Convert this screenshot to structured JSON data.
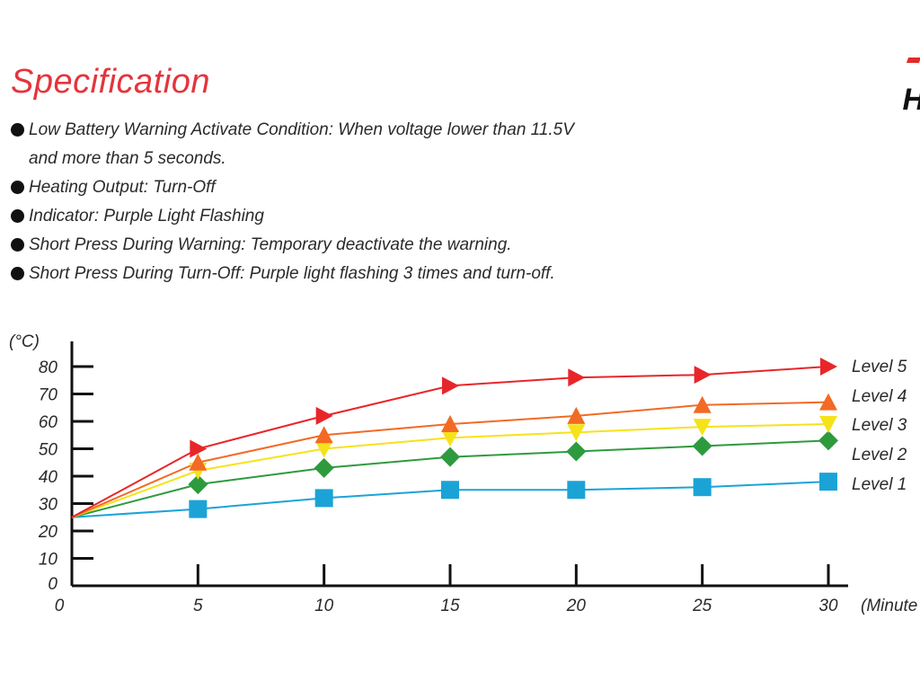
{
  "header": {
    "title": "Specification",
    "corner_text": "H"
  },
  "spec_items": [
    {
      "text": "Low Battery Warning Activate Condition: When voltage lower than 11.5V",
      "continuation": "and more than 5 seconds."
    },
    {
      "text": "Heating Output: Turn-Off",
      "continuation": ""
    },
    {
      "text": "Indicator: Purple Light Flashing",
      "continuation": ""
    },
    {
      "text": "Short Press During Warning: Temporary deactivate the warning.",
      "continuation": ""
    },
    {
      "text": "Short Press During Turn-Off: Purple light flashing 3 times and turn-off.",
      "continuation": ""
    }
  ],
  "chart_data": {
    "type": "line",
    "title": "",
    "ylabel": "(°C)",
    "xlabel": "(Minute",
    "x": [
      0,
      5,
      10,
      15,
      20,
      25,
      30
    ],
    "xticks": [
      "0",
      "5",
      "10",
      "15",
      "20",
      "25",
      "30"
    ],
    "yticks": [
      "0",
      "10",
      "20",
      "30",
      "40",
      "50",
      "60",
      "70",
      "80"
    ],
    "ylim": [
      0,
      80
    ],
    "xlim": [
      0,
      30
    ],
    "grid": false,
    "legend_placement": "right",
    "series": [
      {
        "name": "Level 5",
        "color": "#e8262a",
        "marker": "triangle-right",
        "values": [
          25,
          50,
          62,
          73,
          76,
          77,
          80
        ]
      },
      {
        "name": "Level 4",
        "color": "#f26a24",
        "marker": "triangle-up",
        "values": [
          25,
          45,
          55,
          59,
          62,
          66,
          67
        ]
      },
      {
        "name": "Level 3",
        "color": "#f6e21a",
        "marker": "triangle-down",
        "values": [
          25,
          42,
          50,
          54,
          56,
          58,
          59
        ]
      },
      {
        "name": "Level 2",
        "color": "#2e9a3e",
        "marker": "diamond",
        "values": [
          25,
          37,
          43,
          47,
          49,
          51,
          53
        ]
      },
      {
        "name": "Level 1",
        "color": "#1ba3d6",
        "marker": "square",
        "values": [
          25,
          28,
          32,
          35,
          35,
          36,
          38
        ]
      }
    ]
  }
}
